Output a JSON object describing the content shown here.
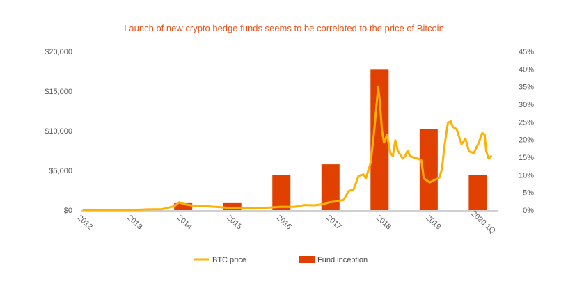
{
  "chart_data": {
    "type": "bar+line",
    "title": "Launch of new crypto  hedge funds seems to be correlated to the price of Bitcoin",
    "colors": {
      "title": "#E8541E",
      "bar": "#E04000",
      "line": "#FFB000",
      "axis": "#D0D0D0"
    },
    "x_ticks": [
      "2012",
      "2013",
      "2014",
      "2015",
      "2016",
      "2017",
      "2018",
      "2019",
      "2020 1Q"
    ],
    "x_range": [
      2012.0,
      2020.45
    ],
    "left_axis": {
      "ticks": [
        "$20,000",
        "$15,000",
        "$10,000",
        "$5,000",
        "$0"
      ],
      "tick_values": [
        20000,
        15000,
        10000,
        5000,
        0
      ],
      "range": [
        0,
        20000
      ]
    },
    "right_axis": {
      "ticks": [
        "45%",
        "40%",
        "35%",
        "30%",
        "25%",
        "20%",
        "15%",
        "10%",
        "5%",
        "0%"
      ],
      "tick_values": [
        45,
        40,
        35,
        30,
        25,
        20,
        15,
        10,
        5,
        0
      ],
      "range": [
        0,
        45
      ]
    },
    "series": [
      {
        "name": "BTC price",
        "type": "line",
        "axis": "left",
        "points": [
          [
            2012.0,
            5
          ],
          [
            2012.5,
            8
          ],
          [
            2013.0,
            13
          ],
          [
            2013.3,
            100
          ],
          [
            2013.6,
            120
          ],
          [
            2013.85,
            500
          ],
          [
            2013.95,
            1000
          ],
          [
            2014.0,
            850
          ],
          [
            2014.1,
            700
          ],
          [
            2014.2,
            600
          ],
          [
            2014.4,
            550
          ],
          [
            2014.6,
            450
          ],
          [
            2014.8,
            380
          ],
          [
            2015.0,
            250
          ],
          [
            2015.3,
            240
          ],
          [
            2015.6,
            250
          ],
          [
            2015.9,
            380
          ],
          [
            2016.0,
            430
          ],
          [
            2016.3,
            420
          ],
          [
            2016.5,
            650
          ],
          [
            2016.7,
            610
          ],
          [
            2016.9,
            750
          ],
          [
            2017.0,
            1000
          ],
          [
            2017.15,
            1100
          ],
          [
            2017.3,
            1300
          ],
          [
            2017.4,
            2400
          ],
          [
            2017.5,
            2600
          ],
          [
            2017.6,
            4300
          ],
          [
            2017.7,
            4500
          ],
          [
            2017.75,
            4000
          ],
          [
            2017.85,
            6000
          ],
          [
            2017.92,
            10000
          ],
          [
            2018.0,
            15500
          ],
          [
            2018.03,
            14000
          ],
          [
            2018.08,
            10000
          ],
          [
            2018.12,
            8500
          ],
          [
            2018.18,
            9500
          ],
          [
            2018.25,
            7200
          ],
          [
            2018.3,
            6800
          ],
          [
            2018.35,
            8800
          ],
          [
            2018.4,
            7500
          ],
          [
            2018.5,
            6500
          ],
          [
            2018.55,
            6800
          ],
          [
            2018.6,
            7500
          ],
          [
            2018.65,
            6800
          ],
          [
            2018.8,
            6500
          ],
          [
            2018.88,
            6300
          ],
          [
            2018.93,
            4000
          ],
          [
            2018.98,
            3800
          ],
          [
            2019.05,
            3500
          ],
          [
            2019.15,
            3800
          ],
          [
            2019.25,
            4100
          ],
          [
            2019.3,
            5200
          ],
          [
            2019.35,
            8000
          ],
          [
            2019.42,
            11000
          ],
          [
            2019.48,
            11200
          ],
          [
            2019.52,
            10500
          ],
          [
            2019.6,
            10200
          ],
          [
            2019.7,
            8300
          ],
          [
            2019.78,
            9000
          ],
          [
            2019.85,
            7400
          ],
          [
            2019.95,
            7200
          ],
          [
            2020.05,
            8500
          ],
          [
            2020.12,
            9700
          ],
          [
            2020.17,
            9500
          ],
          [
            2020.2,
            7500
          ],
          [
            2020.25,
            6500
          ],
          [
            2020.3,
            6800
          ]
        ]
      },
      {
        "name": "Fund inception",
        "type": "bar",
        "axis": "right",
        "points": [
          [
            2014,
            2
          ],
          [
            2015,
            2
          ],
          [
            2016,
            10
          ],
          [
            2017,
            13
          ],
          [
            2018,
            40
          ],
          [
            2019,
            23
          ],
          [
            2020,
            10
          ]
        ]
      }
    ],
    "grid": false,
    "legend": "bottom-center"
  }
}
